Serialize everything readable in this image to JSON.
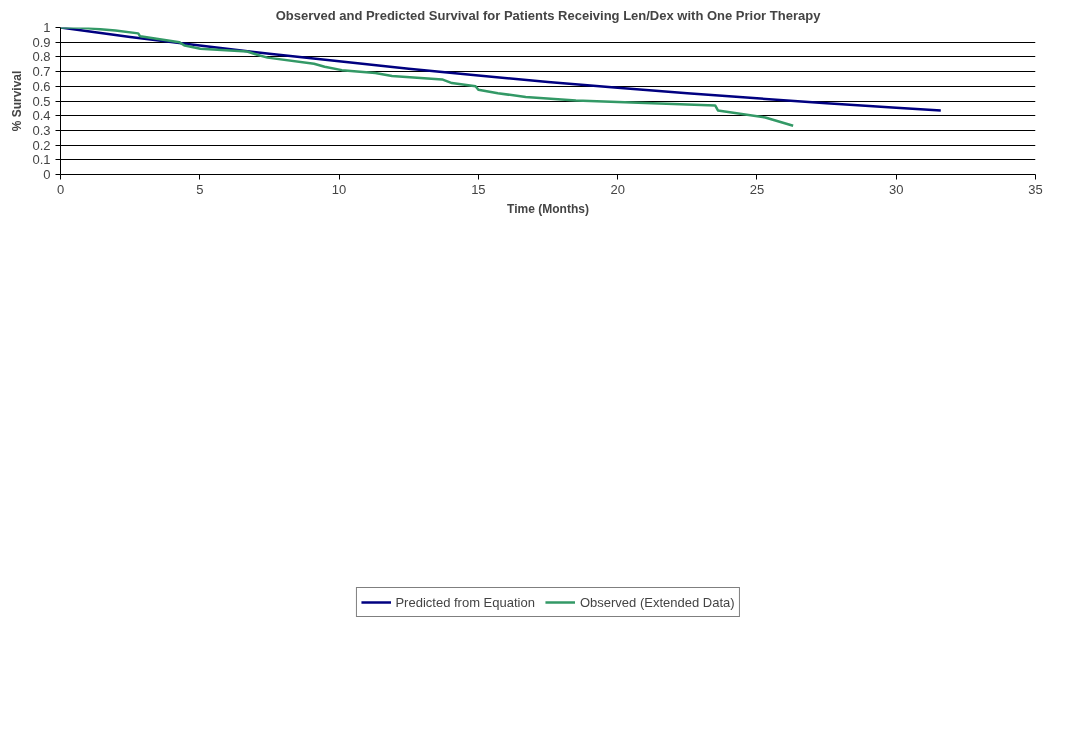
{
  "chart_data": {
    "type": "line",
    "title": "Observed and Predicted Survival for Patients Receiving Len/Dex with One Prior Therapy",
    "xlabel": "Time (Months)",
    "ylabel": "% Survival",
    "xlim": [
      0,
      35
    ],
    "xticks": [
      0,
      5,
      10,
      15,
      20,
      25,
      30,
      35
    ],
    "ylim": [
      0,
      1
    ],
    "yticks": [
      0,
      0.1,
      0.2,
      0.3,
      0.4,
      0.5,
      0.6,
      0.7,
      0.8,
      0.9,
      1
    ],
    "grid": "y",
    "legend": "bottom",
    "marker": "none",
    "line_style": "solid",
    "series": [
      {
        "name": "Predicted from Equation",
        "color": "#000080",
        "x": [
          0,
          2.5,
          5,
          7.5,
          10,
          12.5,
          15,
          17.5,
          20,
          22.5,
          25,
          27.5,
          30,
          31.6
        ],
        "values": [
          1,
          0.936,
          0.877,
          0.821,
          0.77,
          0.72,
          0.673,
          0.63,
          0.59,
          0.553,
          0.518,
          0.485,
          0.454,
          0.435
        ]
      },
      {
        "name": "Observed (Extended Data)",
        "color": "#339966",
        "x": [
          0,
          0.67,
          1.97,
          2.79,
          2.86,
          4.27,
          4.46,
          5.02,
          6.7,
          7.06,
          7.43,
          9.1,
          9.48,
          10.1,
          11.3,
          11.9,
          13.7,
          14.05,
          14.9,
          15.0,
          15.7,
          16.7,
          18.5,
          23.5,
          23.6,
          25.3,
          26.3
        ],
        "values": [
          1,
          1,
          0.98,
          0.96,
          0.94,
          0.9,
          0.877,
          0.856,
          0.837,
          0.815,
          0.795,
          0.753,
          0.733,
          0.71,
          0.69,
          0.67,
          0.647,
          0.622,
          0.6,
          0.576,
          0.553,
          0.527,
          0.504,
          0.47,
          0.436,
          0.388,
          0.332
        ]
      }
    ]
  }
}
